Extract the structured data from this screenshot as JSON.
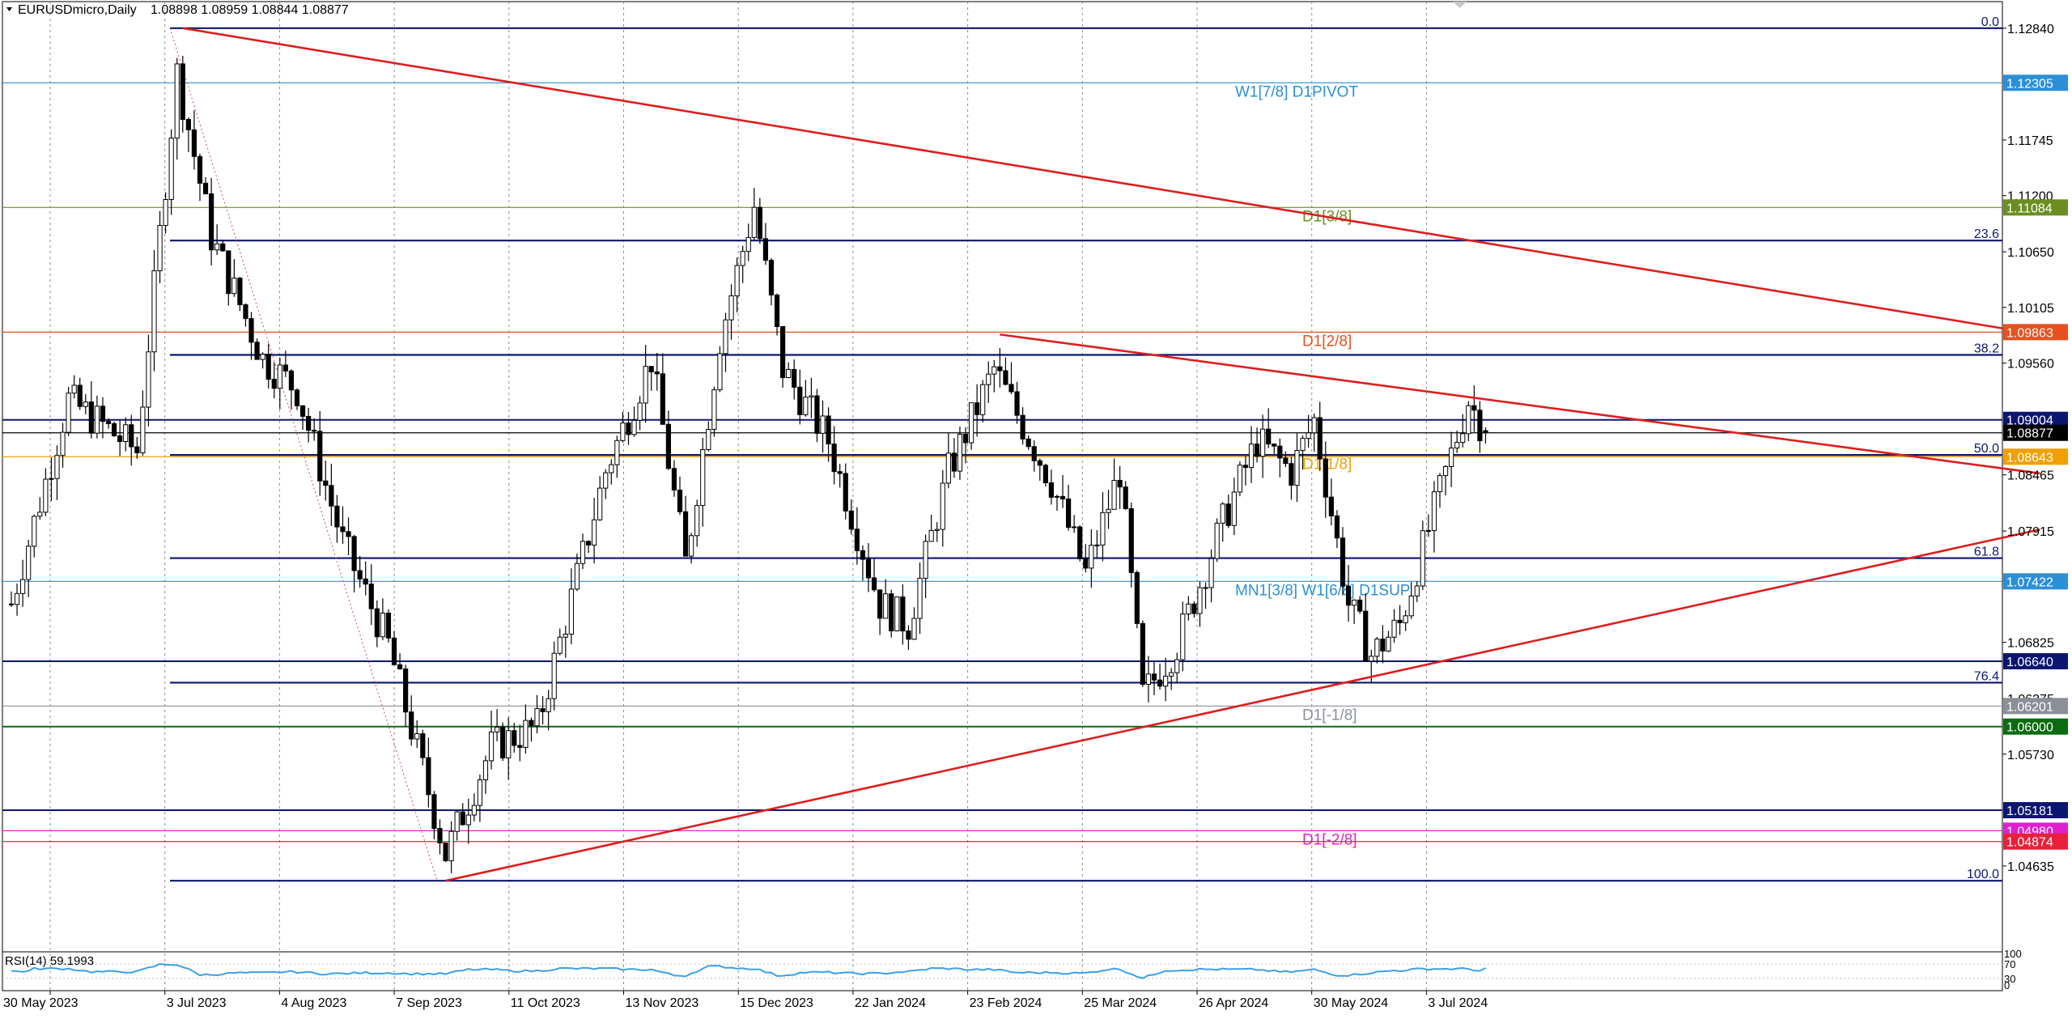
{
  "header": {
    "symbol": "EURUSDmicro,Daily",
    "ohlc": "1.08898 1.08959 1.08844 1.08877"
  },
  "rsi": {
    "label": "RSI(14) 59.1993",
    "axis_ticks": [
      "100",
      "70",
      "30",
      "0"
    ]
  },
  "colors": {
    "background": "#ffffff",
    "grid": "#8c8c8c",
    "fib": "#0c1670",
    "trend": "#dc1e1e",
    "candle": "#000000",
    "rsi_line": "#3aa0e8"
  },
  "chart_data": {
    "type": "candlestick",
    "title": "EURUSDmicro,Daily",
    "last_ohlc": {
      "open": 1.08898,
      "high": 1.08959,
      "low": 1.08844,
      "close": 1.08877
    },
    "ylim": [
      1.04,
      1.131
    ],
    "price_ticks": [
      "1.12840",
      "1.11745",
      "1.11200",
      "1.10650",
      "1.10105",
      "1.09560",
      "1.08465",
      "1.07915",
      "1.06825",
      "1.06275",
      "1.05730",
      "1.04635"
    ],
    "x_ticks": [
      "30 May 2023",
      "3 Jul 2023",
      "4 Aug 2023",
      "7 Sep 2023",
      "11 Oct 2023",
      "13 Nov 2023",
      "15 Dec 2023",
      "22 Jan 2024",
      "23 Feb 2024",
      "25 Mar 2024",
      "26 Apr 2024",
      "30 May 2024",
      "3 Jul 2024"
    ],
    "fib_levels": [
      {
        "label": "0.0",
        "price": 1.1284
      },
      {
        "label": "23.6",
        "price": 1.1076
      },
      {
        "label": "38.2",
        "price": 1.0964
      },
      {
        "label": "50.0",
        "price": 1.0866
      },
      {
        "label": "61.8",
        "price": 1.0765
      },
      {
        "label": "76.4",
        "price": 1.0643
      },
      {
        "label": "100.0",
        "price": 1.0449
      }
    ],
    "levels": [
      {
        "label": "W1[7/8] D1PIVOT",
        "price": 1.12305,
        "tag": "1.12305",
        "color": "#2b8fd6"
      },
      {
        "label": "D1[3/8]",
        "price": 1.11084,
        "tag": "1.11084",
        "color": "#6b8e23"
      },
      {
        "label": "D1[2/8]",
        "price": 1.09863,
        "tag": "1.09863",
        "color": "#e8501e"
      },
      {
        "label": "",
        "price": 1.09004,
        "tag": "1.09004",
        "color": "#0c1670"
      },
      {
        "label": "",
        "price": 1.08877,
        "tag": "1.08877",
        "color": "#000000"
      },
      {
        "label": "D1[1/8]",
        "price": 1.08643,
        "tag": "1.08643",
        "color": "#f0a000"
      },
      {
        "label": "MN1[3/8] W1[6/8] D1SUP",
        "price": 1.07422,
        "tag": "1.07422",
        "color": "#2b8fd6"
      },
      {
        "label": "",
        "price": 1.0664,
        "tag": "1.06640",
        "color": "#0c1670"
      },
      {
        "label": "D1[-1/8]",
        "price": 1.06201,
        "tag": "1.06201",
        "color": "#8a8f98"
      },
      {
        "label": "",
        "price": 1.06,
        "tag": "1.06000",
        "color": "#0b6b10"
      },
      {
        "label": "",
        "price": 1.05181,
        "tag": "1.05181",
        "color": "#0c1670"
      },
      {
        "label": "D1[-2/8]",
        "price": 1.0498,
        "tag": "1.04980",
        "color": "#e020d0"
      },
      {
        "label": "",
        "price": 1.04874,
        "tag": "1.04874",
        "color": "#e8203a"
      }
    ],
    "trendlines": [
      {
        "from_bar": 30,
        "from_price": 1.1284,
        "to_bar": 355,
        "to_price": 1.0984
      },
      {
        "from_bar": 173,
        "from_price": 1.0984,
        "to_bar": 355,
        "to_price": 1.0848
      },
      {
        "from_bar": 76,
        "from_price": 1.0449,
        "to_bar": 355,
        "to_price": 1.0793
      }
    ],
    "anchors": [
      {
        "bar": 0,
        "price": 1.072
      },
      {
        "bar": 10,
        "price": 1.092
      },
      {
        "bar": 22,
        "price": 1.087
      },
      {
        "bar": 29,
        "price": 1.124
      },
      {
        "bar": 35,
        "price": 1.108
      },
      {
        "bar": 44,
        "price": 1.096
      },
      {
        "bar": 50,
        "price": 1.093
      },
      {
        "bar": 58,
        "price": 1.078
      },
      {
        "bar": 66,
        "price": 1.068
      },
      {
        "bar": 76,
        "price": 1.0475
      },
      {
        "bar": 84,
        "price": 1.058
      },
      {
        "bar": 92,
        "price": 1.06
      },
      {
        "bar": 104,
        "price": 1.085
      },
      {
        "bar": 112,
        "price": 1.096
      },
      {
        "bar": 118,
        "price": 1.076
      },
      {
        "bar": 124,
        "price": 1.098
      },
      {
        "bar": 130,
        "price": 1.111
      },
      {
        "bar": 135,
        "price": 1.095
      },
      {
        "bar": 143,
        "price": 1.088
      },
      {
        "bar": 152,
        "price": 1.072
      },
      {
        "bar": 157,
        "price": 1.07
      },
      {
        "bar": 164,
        "price": 1.085
      },
      {
        "bar": 172,
        "price": 1.095
      },
      {
        "bar": 182,
        "price": 1.084
      },
      {
        "bar": 188,
        "price": 1.075
      },
      {
        "bar": 194,
        "price": 1.085
      },
      {
        "bar": 198,
        "price": 1.063
      },
      {
        "bar": 204,
        "price": 1.068
      },
      {
        "bar": 212,
        "price": 1.08
      },
      {
        "bar": 218,
        "price": 1.088
      },
      {
        "bar": 224,
        "price": 1.085
      },
      {
        "bar": 228,
        "price": 1.09
      },
      {
        "bar": 234,
        "price": 1.072
      },
      {
        "bar": 238,
        "price": 1.067
      },
      {
        "bar": 243,
        "price": 1.07
      },
      {
        "bar": 250,
        "price": 1.083
      },
      {
        "bar": 255,
        "price": 1.092
      },
      {
        "bar": 258,
        "price": 1.0888
      }
    ]
  }
}
